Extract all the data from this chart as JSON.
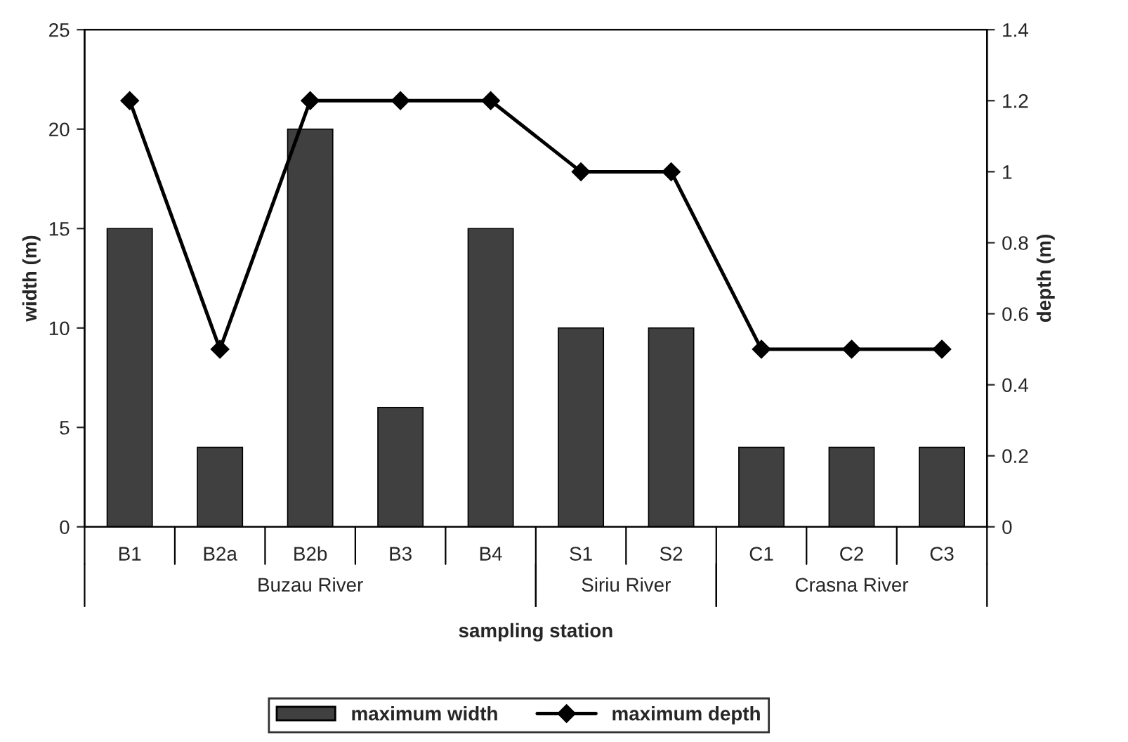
{
  "chart_data": {
    "type": "bar",
    "xlabel": "sampling station",
    "ylabel": "width (m)",
    "y2label": "depth (m)",
    "categories": [
      "B1",
      "B2a",
      "B2b",
      "B3",
      "B4",
      "S1",
      "S2",
      "C1",
      "C2",
      "C3"
    ],
    "series": [
      {
        "name": "maximum width",
        "color": "#404040",
        "values": [
          15,
          4,
          20,
          6,
          15,
          10,
          10,
          4,
          4,
          4
        ]
      },
      {
        "name": "maximum depth",
        "type": "line",
        "axis": "y2",
        "color": "#000000",
        "marker": "diamond",
        "values": [
          1.2,
          0.5,
          1.2,
          1.2,
          1.2,
          1,
          1,
          0.5,
          0.5,
          0.5
        ]
      }
    ],
    "ylim": [
      0,
      25
    ],
    "yticks": [
      0,
      5,
      10,
      15,
      20,
      25
    ],
    "y2lim": [
      0,
      1.4
    ],
    "y2ticks": [
      0,
      0.2,
      0.4,
      0.6,
      0.8,
      1,
      1.2,
      1.4
    ],
    "annotations": [
      "Buzau River",
      "Siriu River",
      "Crasna River"
    ],
    "legend": "bottom",
    "grid": false
  }
}
